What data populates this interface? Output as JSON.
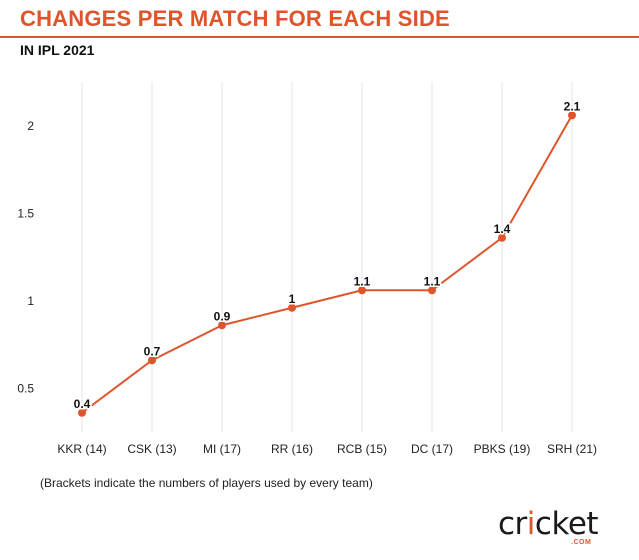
{
  "header": {
    "title": "CHANGES PER MATCH FOR EACH SIDE",
    "subtitle": "IN IPL 2021"
  },
  "footnote": "(Brackets indicate the numbers of players used by every team)",
  "logo": {
    "text": "cricket",
    "suffix": ".COM"
  },
  "colors": {
    "accent": "#e0542c",
    "title": "#e0542c",
    "grid": "#e4e4e4",
    "text": "#111111"
  },
  "chart_data": {
    "type": "line",
    "title": "CHANGES PER MATCH FOR EACH SIDE",
    "subtitle": "IN IPL 2021",
    "categories": [
      "KKR (14)",
      "CSK (13)",
      "MI (17)",
      "RR (16)",
      "RCB (15)",
      "DC (17)",
      "PBKS (19)",
      "SRH (21)"
    ],
    "series": [
      {
        "values": [
          0.36,
          0.66,
          0.86,
          0.96,
          1.06,
          1.06,
          1.36,
          2.06
        ],
        "labels": [
          "0.4",
          "0.7",
          "0.9",
          "1",
          "1.1",
          "1.1",
          "1.4",
          "2.1"
        ]
      }
    ],
    "yticks": [
      0.5,
      1,
      1.5,
      2
    ],
    "ytick_labels": [
      "0.5",
      "1",
      "1.5",
      "2"
    ],
    "ylim": [
      0.25,
      2.25
    ],
    "grid": "vertical",
    "xlabel": "",
    "ylabel": ""
  }
}
